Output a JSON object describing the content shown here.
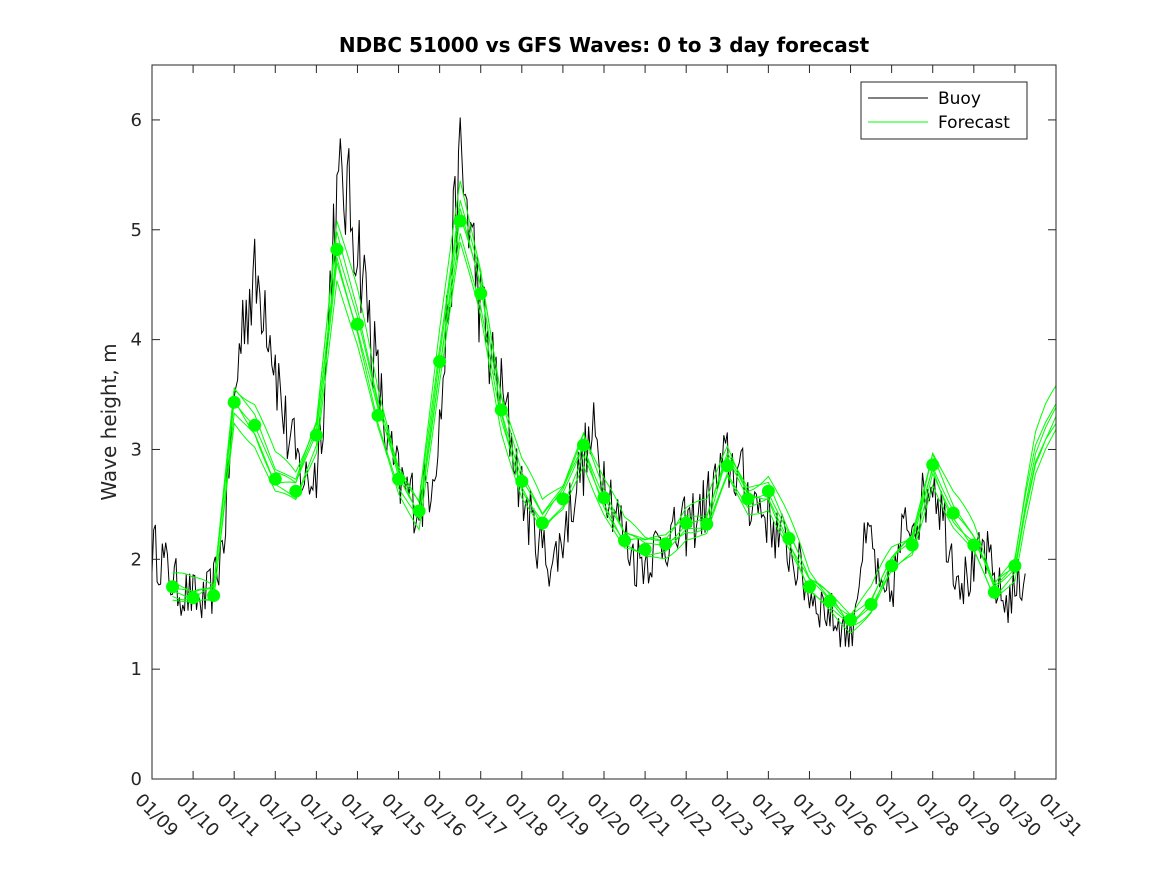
{
  "chart_data": {
    "type": "line",
    "title": "NDBC 51000 vs GFS Waves: 0 to 3 day forecast",
    "xlabel": "",
    "ylabel": "Wave height, m",
    "xlim": [
      0,
      22
    ],
    "ylim": [
      0,
      6.5
    ],
    "yticks": [
      0,
      1,
      2,
      3,
      4,
      5,
      6
    ],
    "x_tick_labels": [
      "01/09",
      "01/10",
      "01/11",
      "01/12",
      "01/13",
      "01/14",
      "01/15",
      "01/16",
      "01/17",
      "01/18",
      "01/19",
      "01/20",
      "01/21",
      "01/22",
      "01/23",
      "01/24",
      "01/25",
      "01/26",
      "01/27",
      "01/28",
      "01/29",
      "01/30",
      "01/31"
    ],
    "x_units": "days since 01/09 00:00",
    "legend": {
      "position": "top-right",
      "entries": [
        "Buoy",
        "Forecast"
      ]
    },
    "colors": {
      "buoy": "#000000",
      "forecast": "#00ff00",
      "axis": "#262626"
    },
    "series": [
      {
        "name": "Buoy",
        "x": [
          0,
          0.25,
          0.5,
          0.75,
          1.0,
          1.25,
          1.5,
          1.75,
          1.9,
          2.1,
          2.25,
          2.5,
          2.75,
          3.0,
          3.25,
          3.5,
          3.75,
          4.0,
          4.25,
          4.4,
          4.6,
          4.75,
          5.0,
          5.25,
          5.5,
          5.75,
          6.0,
          6.25,
          6.5,
          6.75,
          7.0,
          7.25,
          7.5,
          7.75,
          8.0,
          8.25,
          8.5,
          8.75,
          9.0,
          9.25,
          9.5,
          9.75,
          10.0,
          10.25,
          10.5,
          10.75,
          11.0,
          11.25,
          11.5,
          11.75,
          12.0,
          12.25,
          12.5,
          12.75,
          13.0,
          13.25,
          13.5,
          13.75,
          14.0,
          14.25,
          14.5,
          14.75,
          15.0,
          15.25,
          15.5,
          15.75,
          16.0,
          16.25,
          16.5,
          16.75,
          17.0,
          17.25,
          17.5,
          17.75,
          18.0,
          18.25,
          18.5,
          18.75,
          19.0,
          19.25,
          19.5,
          19.75,
          20.0,
          20.25,
          20.5,
          20.75,
          21.0,
          21.25
        ],
        "values": [
          2.1,
          2.0,
          1.8,
          1.7,
          1.65,
          1.6,
          1.75,
          2.2,
          3.0,
          3.8,
          4.3,
          4.5,
          4.4,
          3.8,
          3.2,
          2.9,
          2.7,
          2.8,
          3.8,
          5.0,
          5.4,
          5.3,
          4.9,
          4.3,
          3.6,
          3.0,
          2.7,
          2.6,
          2.5,
          2.7,
          3.2,
          4.5,
          5.6,
          5.0,
          4.3,
          3.8,
          3.5,
          3.1,
          2.6,
          2.3,
          2.1,
          1.95,
          2.2,
          2.6,
          2.9,
          3.1,
          2.8,
          2.5,
          2.2,
          2.0,
          2.0,
          2.1,
          2.2,
          2.2,
          2.3,
          2.4,
          2.5,
          2.7,
          2.9,
          2.8,
          2.6,
          2.5,
          2.4,
          2.2,
          2.1,
          1.9,
          1.7,
          1.6,
          1.5,
          1.4,
          1.3,
          2.0,
          2.2,
          1.6,
          1.7,
          2.2,
          2.4,
          2.5,
          2.8,
          2.4,
          2.0,
          1.8,
          1.9,
          2.1,
          1.8,
          1.6,
          1.7,
          1.9
        ]
      },
      {
        "name": "Forecast",
        "x": [
          0.5,
          1.0,
          1.5,
          2.0,
          2.5,
          3.0,
          3.5,
          4.0,
          4.5,
          5.0,
          5.5,
          6.0,
          6.5,
          7.0,
          7.5,
          8.0,
          8.5,
          9.0,
          9.5,
          10.0,
          10.5,
          11.0,
          11.5,
          12.0,
          12.5,
          13.0,
          13.5,
          14.0,
          14.5,
          15.0,
          15.5,
          16.0,
          16.5,
          17.0,
          17.5,
          18.0,
          18.5,
          19.0,
          19.5,
          20.0,
          20.5,
          21.0
        ],
        "values": [
          1.75,
          1.65,
          1.67,
          3.43,
          3.22,
          2.73,
          2.62,
          3.13,
          4.82,
          4.14,
          3.31,
          2.73,
          2.44,
          3.8,
          5.08,
          4.42,
          3.36,
          2.71,
          2.33,
          2.55,
          3.04,
          2.56,
          2.17,
          2.09,
          2.14,
          2.33,
          2.32,
          2.85,
          2.55,
          2.62,
          2.19,
          1.75,
          1.62,
          1.45,
          1.59,
          1.94,
          2.13,
          2.86,
          2.42,
          2.13,
          1.7,
          1.94
        ]
      }
    ],
    "forecast_extension": {
      "x": [
        21.0,
        21.25,
        21.5,
        21.75,
        22.0
      ],
      "values": [
        1.94,
        2.5,
        2.95,
        3.15,
        3.3
      ]
    }
  }
}
